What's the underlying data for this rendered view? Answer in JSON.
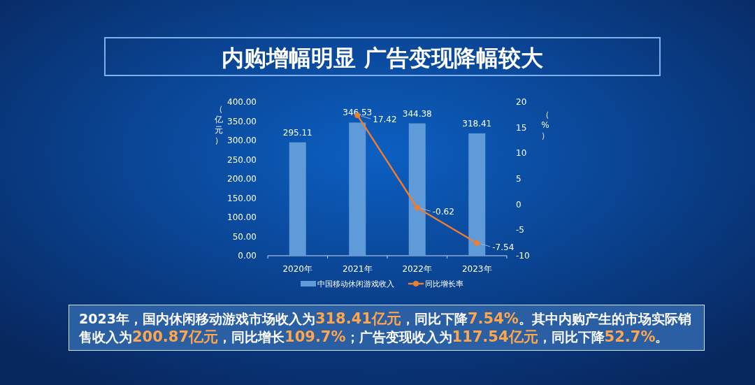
{
  "chart_data": {
    "type": "bar",
    "title": "内购增幅明显 广告变现降幅较大",
    "categories": [
      "2020年",
      "2021年",
      "2022年",
      "2023年"
    ],
    "series": [
      {
        "name": "中国移动休闲游戏收入",
        "color": "#5f9bd8",
        "values": [
          295.11,
          346.53,
          344.38,
          318.41
        ]
      },
      {
        "name": "同比增长率",
        "type": "line",
        "axis": "y2",
        "color": "#ed7d31",
        "marker": "circle",
        "values": [
          null,
          17.42,
          -0.62,
          -7.54
        ]
      }
    ],
    "ylabel": "（亿元）",
    "y2label": "（%）",
    "ylim": [
      0,
      400
    ],
    "yticks": [
      {
        "value": 0,
        "label": "0.00"
      },
      {
        "value": 50,
        "label": "50.00"
      },
      {
        "value": 100,
        "label": "100.00"
      },
      {
        "value": 150,
        "label": "150.00"
      },
      {
        "value": 200,
        "label": "200.00"
      },
      {
        "value": 250,
        "label": "250.00"
      },
      {
        "value": 300,
        "label": "300.00"
      },
      {
        "value": 350,
        "label": "350.00"
      },
      {
        "value": 400,
        "label": "400.00"
      }
    ],
    "y2lim": [
      -10,
      20
    ],
    "y2ticks": [
      -10,
      -5,
      0,
      5,
      10,
      15,
      20
    ],
    "data_labels": true,
    "legend": "bottom",
    "annotations": [
      "2023年，国内休闲移动游戏市场收入为**318.41亿元**，同比下降**7.54%**。其中内购产生的市场实际销售收入为**200.87亿元**，同比增长**109.7%**；广告变现收入为**117.54亿元**，同比下降**52.7%**。"
    ]
  }
}
